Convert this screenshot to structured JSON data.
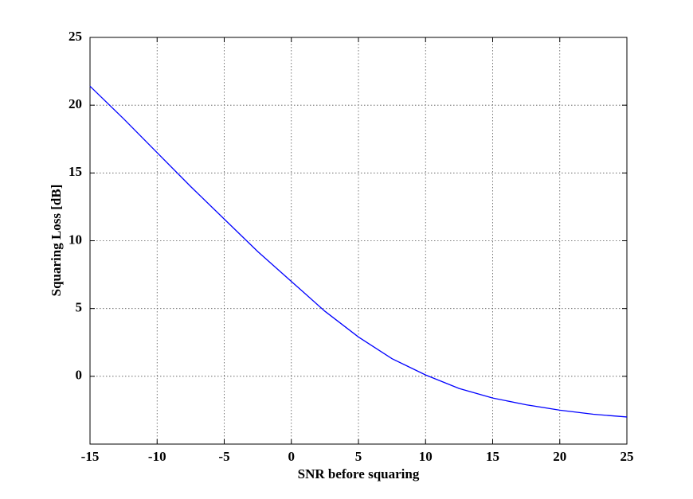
{
  "chart_data": {
    "type": "line",
    "x_label": "SNR before squaring",
    "y_label": "Squaring Loss [dB]",
    "x": [
      -15,
      -12.5,
      -10,
      -7.5,
      -5,
      -2.5,
      0,
      2.5,
      5,
      7.5,
      10,
      12.5,
      15,
      17.5,
      20,
      22.5,
      25
    ],
    "series": [
      {
        "color": "#0000ff",
        "values": [
          21.4,
          19.0,
          16.5,
          14.0,
          11.6,
          9.2,
          7.0,
          4.8,
          2.9,
          1.3,
          0.1,
          -0.9,
          -1.6,
          -2.1,
          -2.5,
          -2.8,
          -3.0
        ]
      }
    ],
    "xlim": [
      -15,
      25
    ],
    "xticks": [
      -15,
      -10,
      -5,
      0,
      5,
      10,
      15,
      20,
      25
    ],
    "ylim": [
      -5,
      25
    ],
    "yticks": [
      0,
      5,
      10,
      15,
      20,
      25
    ],
    "grid": true
  }
}
